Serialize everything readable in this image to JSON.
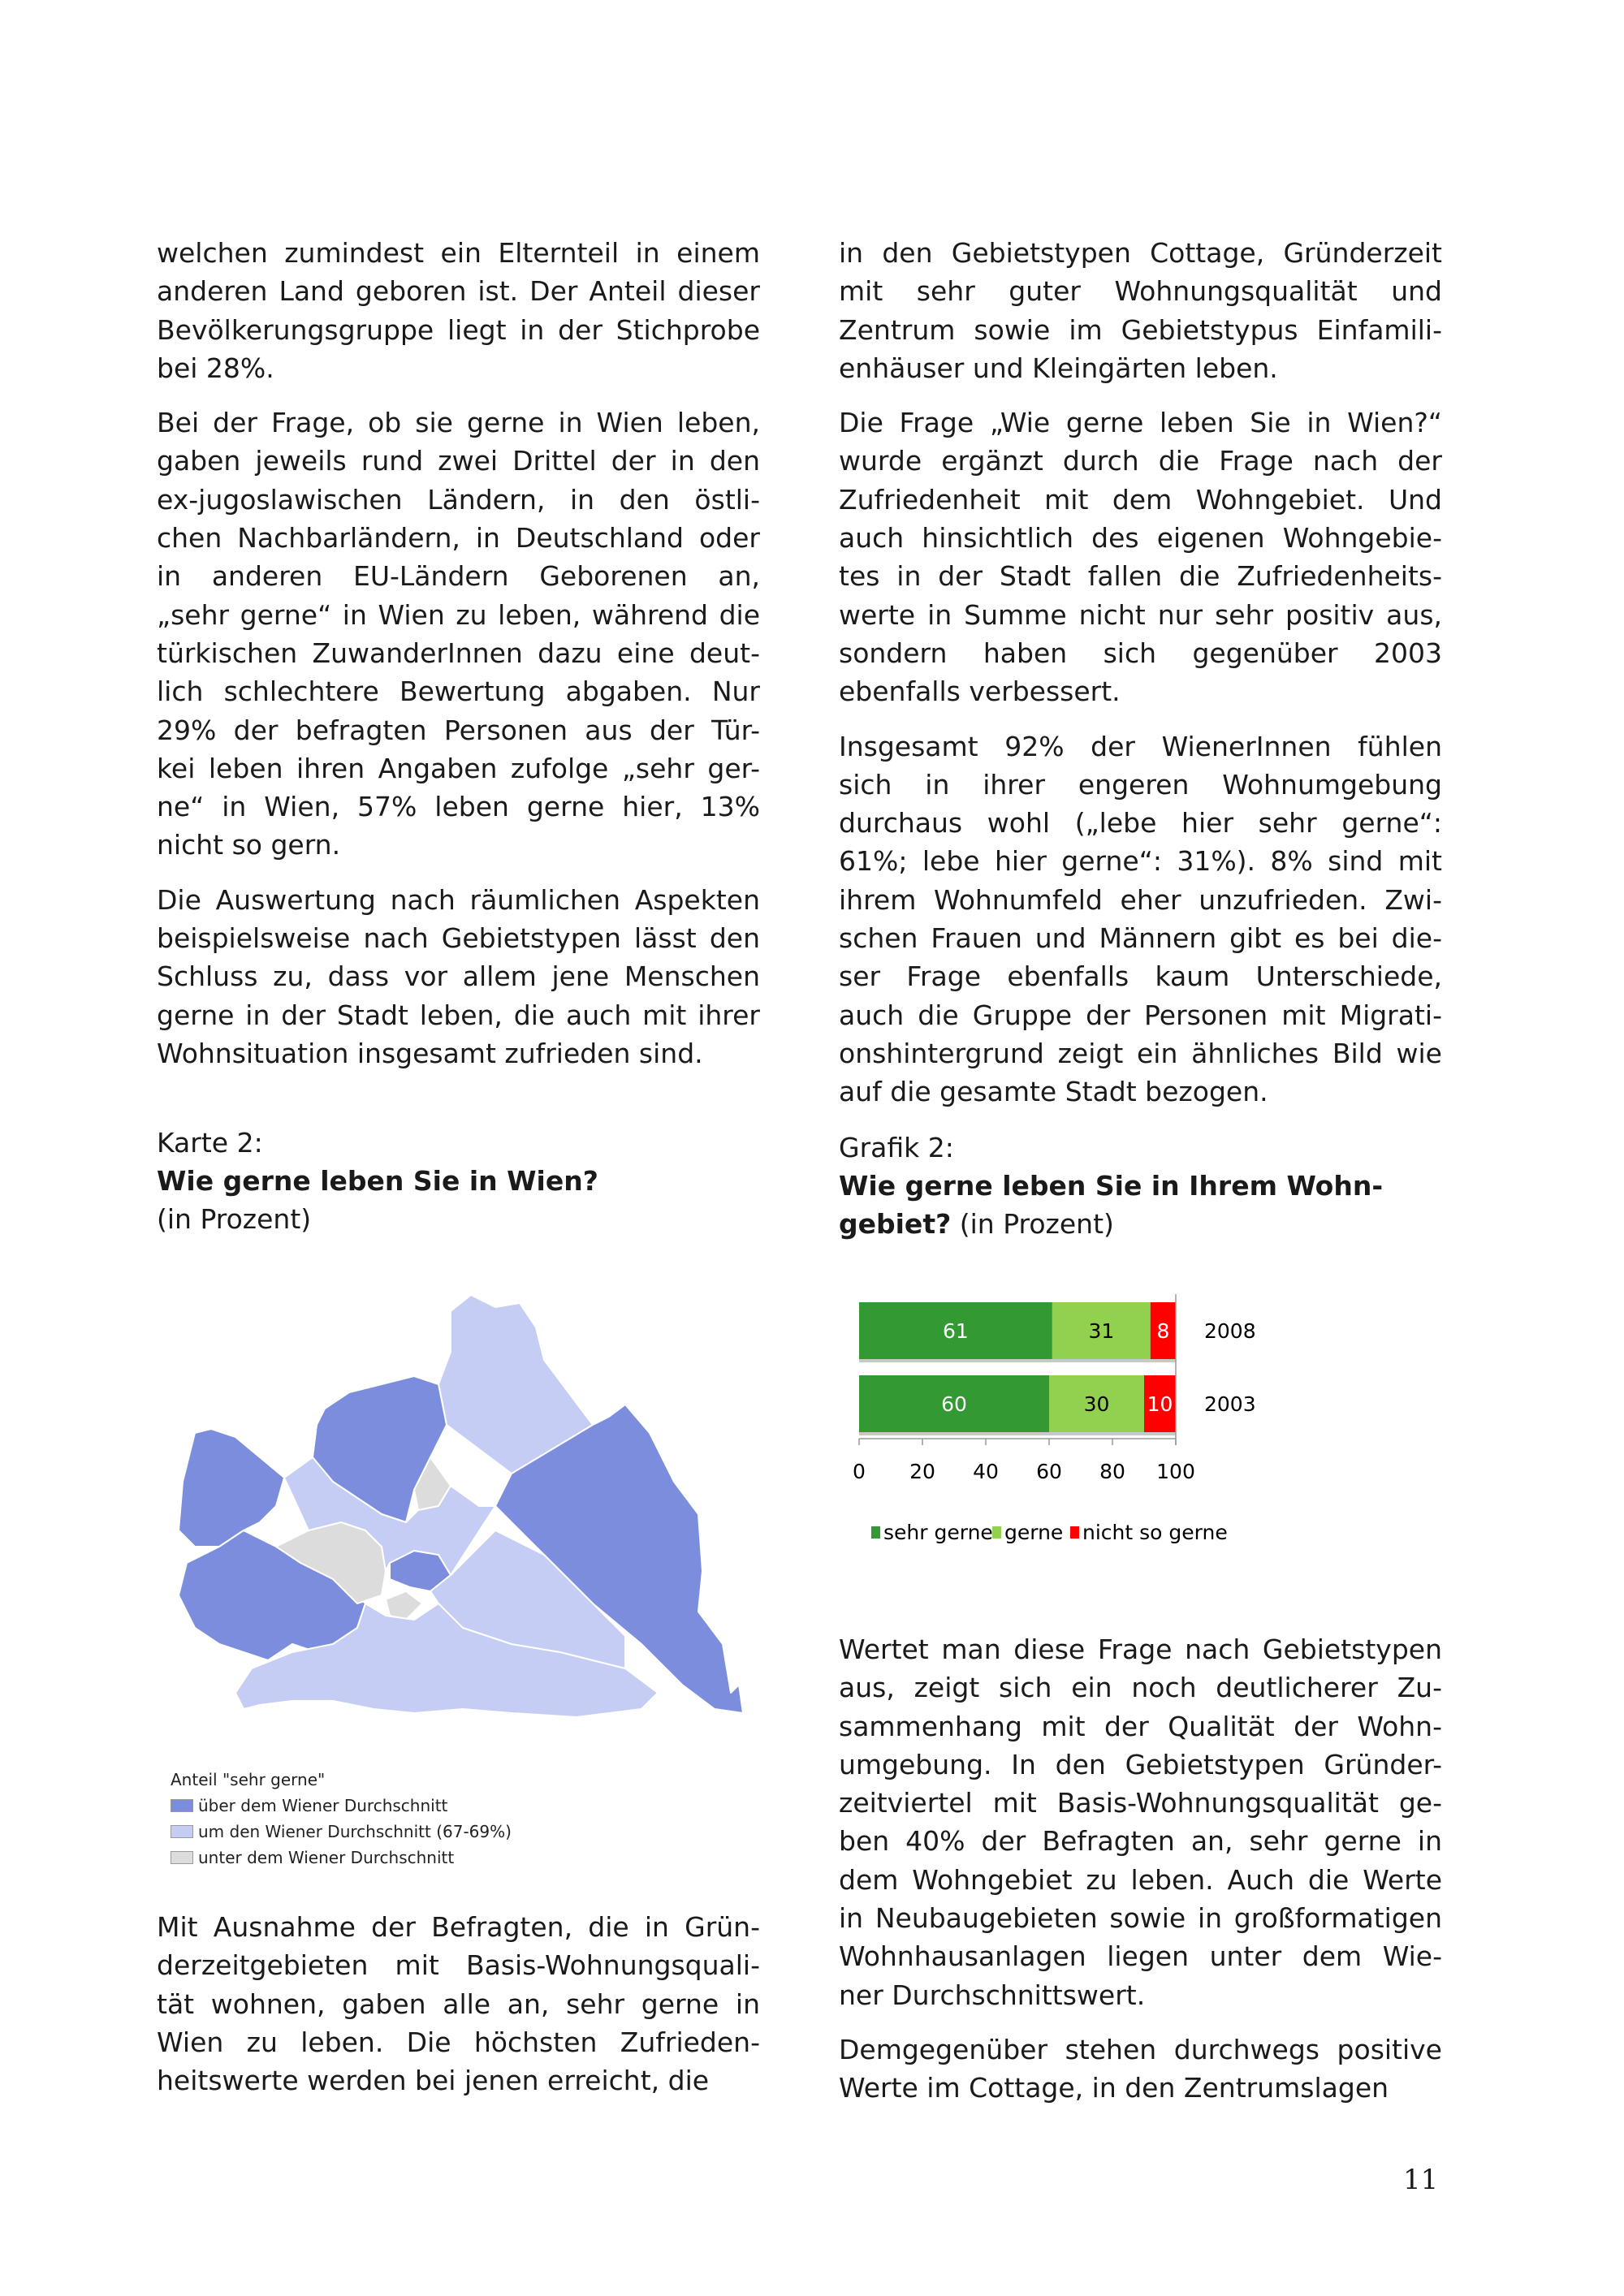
{
  "left_column": {
    "paragraphs": [
      [
        "welchen zumindest ein Elternteil in einem",
        "anderen Land geboren ist. Der Anteil dieser",
        "Bevölkerungsgruppe liegt in der Stichprobe",
        "bei 28%."
      ],
      [
        "Bei der Frage, ob sie gerne in Wien leben,",
        "gaben jeweils rund zwei Drittel der in den",
        "ex-jugoslawischen Ländern, in den östli-",
        "chen Nachbarländern, in Deutschland oder",
        "in anderen EU-Ländern Geborenen an,",
        "„sehr gerne“ in Wien zu leben, während die",
        "türkischen ZuwanderInnen dazu eine deut-",
        "lich schlechtere Bewertung abgaben. Nur",
        "29% der befragten Personen aus der Tür-",
        "kei leben ihren Angaben zufolge „sehr ger-",
        "ne“ in Wien, 57% leben gerne hier, 13%",
        "nicht so gern."
      ],
      [
        "Die Auswertung nach räumlichen Aspekten",
        "beispielsweise nach Gebietstypen lässt den",
        "Schluss zu, dass vor allem jene Menschen",
        "gerne in der Stadt leben, die auch mit ihrer",
        "Wohnsituation insgesamt zufrieden sind."
      ]
    ],
    "paragraphs_after_map": [
      [
        "Mit Ausnahme der Befragten, die in Grün-",
        "derzeitgebieten mit Basis-Wohnungsquali-",
        "tät wohnen, gaben alle an, sehr gerne in",
        "Wien zu leben. Die höchsten Zufrieden-",
        "heitswerte werden bei jenen erreicht, die"
      ]
    ]
  },
  "map": {
    "label": "Karte 2:",
    "title": "Wie gerne leben Sie in Wien?",
    "unit": "(in Prozent)",
    "legend_title": "Anteil \"sehr gerne\"",
    "legend": [
      {
        "label": "über dem Wiener Durchschnitt",
        "color": "#7b8ddc"
      },
      {
        "label": "um den Wiener Durchschnitt (67-69%)",
        "color": "#c5cdf5"
      },
      {
        "label": "unter dem Wiener Durchschnitt",
        "color": "#dcdcdc"
      }
    ]
  },
  "right_column": {
    "paragraphs": [
      [
        "in den Gebietstypen Cottage, Gründerzeit",
        "mit sehr guter Wohnungsqualität und",
        "Zentrum sowie im Gebietstypus Einfamili-",
        "enhäuser und Kleingärten leben."
      ],
      [
        "Die Frage „Wie gerne leben Sie in Wien?“",
        "wurde ergänzt durch die Frage nach der",
        "Zufriedenheit mit dem Wohngebiet. Und",
        "auch hinsichtlich des eigenen Wohngebie-",
        "tes in der Stadt fallen die Zufriedenheits-",
        "werte in Summe nicht nur sehr positiv aus,",
        "sondern haben sich gegenüber 2003",
        "ebenfalls verbessert."
      ],
      [
        "Insgesamt 92% der WienerInnen fühlen",
        "sich in ihrer engeren Wohnumgebung",
        "durchaus wohl („lebe hier sehr gerne“:",
        "61%; lebe hier gerne“: 31%). 8% sind mit",
        "ihrem Wohnumfeld eher unzufrieden. Zwi-",
        "schen Frauen und Männern gibt es bei die-",
        "ser Frage ebenfalls kaum Unterschiede,",
        "auch die Gruppe der Personen mit Migrati-",
        "onshintergrund zeigt ein ähnliches Bild wie",
        "auf die gesamte Stadt bezogen."
      ]
    ],
    "paragraphs_after_chart": [
      [
        "Wertet man diese Frage nach Gebietstypen",
        "aus, zeigt sich ein noch deutlicherer Zu-",
        "sammenhang mit der Qualität der Wohn-",
        "umgebung. In den Gebietstypen Gründer-",
        "zeitviertel mit Basis-Wohnungsqualität ge-",
        "ben 40% der Befragten an, sehr gerne in",
        "dem Wohngebiet zu leben. Auch die Werte",
        "in Neubaugebieten sowie in großformatigen",
        "Wohnhausanlagen liegen unter dem Wie-",
        "ner Durchschnittswert."
      ],
      [
        "Demgegenüber stehen durchwegs positive",
        "Werte im Cottage, in den Zentrumslagen"
      ]
    ]
  },
  "chart_data": {
    "type": "bar",
    "orientation": "horizontal",
    "stacked": true,
    "label": "Grafik 2:",
    "title": "Wie gerne leben Sie in Ihrem Wohn-gebiet?",
    "title_lines": [
      "Wie gerne leben Sie in Ihrem Wohn-",
      "gebiet?"
    ],
    "unit": "(in Prozent)",
    "categories": [
      "2008",
      "2003"
    ],
    "series": [
      {
        "name": "sehr gerne",
        "values": [
          61,
          60
        ],
        "color": "#339933",
        "label_color": "#ffffff"
      },
      {
        "name": "gerne",
        "values": [
          31,
          30
        ],
        "color": "#92d050",
        "label_color": "#000000"
      },
      {
        "name": "nicht so gerne",
        "values": [
          8,
          10
        ],
        "color": "#ff0000",
        "label_color": "#ffffff"
      }
    ],
    "xlim": [
      0,
      100
    ],
    "xticks": [
      "0",
      "20",
      "40",
      "60",
      "80",
      "100"
    ],
    "legend_position": "bottom",
    "grid": false
  },
  "page_number": "11"
}
